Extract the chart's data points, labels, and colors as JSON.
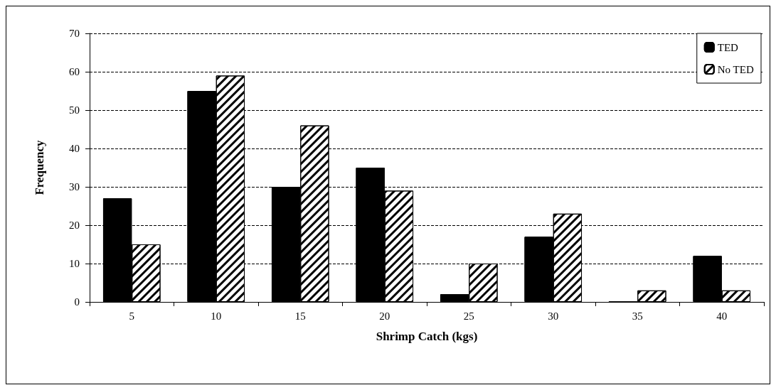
{
  "chart_data": {
    "type": "bar",
    "xlabel": "Shrimp Catch (kgs)",
    "ylabel": "Frequency",
    "categories": [
      "5",
      "10",
      "15",
      "20",
      "25",
      "30",
      "35",
      "40"
    ],
    "series": [
      {
        "name": "TED",
        "color": "#000000",
        "values": [
          27,
          55,
          30,
          35,
          2,
          17,
          0,
          12
        ]
      },
      {
        "name": "No TED",
        "color": "#ffffff",
        "values": [
          15,
          59,
          46,
          29,
          10,
          23,
          3,
          3
        ]
      }
    ],
    "ylim": [
      0,
      70
    ],
    "yticks": [
      0,
      10,
      20,
      30,
      40,
      50,
      60,
      70
    ],
    "grid": "y",
    "legend": "top right"
  }
}
